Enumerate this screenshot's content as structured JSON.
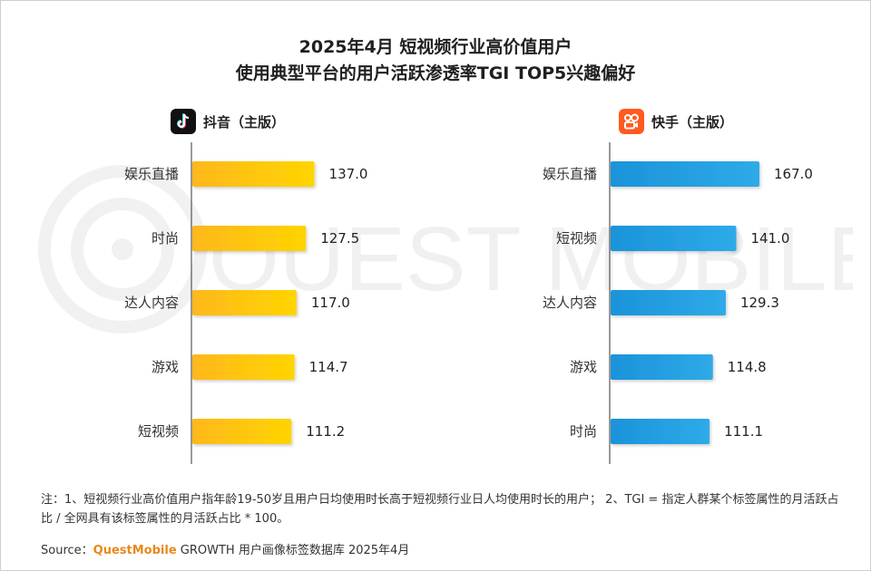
{
  "title_line1": "2025年4月 短视频行业高价值用户",
  "title_line2": "使用典型平台的用户活跃渗透率TGI TOP5兴趣偏好",
  "watermark_text": "QUEST MOBILE",
  "panels": [
    {
      "platform": "抖音（主版）",
      "logo_icon": "douyin-logo-icon"
    },
    {
      "platform": "快手（主版）",
      "logo_icon": "kuaishou-logo-icon"
    }
  ],
  "chart_data": [
    {
      "type": "bar",
      "orientation": "horizontal",
      "title": "抖音（主版）",
      "categories": [
        "娱乐直播",
        "时尚",
        "达人内容",
        "游戏",
        "短视频"
      ],
      "values": [
        137.0,
        127.5,
        117.0,
        114.7,
        111.2
      ],
      "value_labels": [
        "137.0",
        "127.5",
        "117.0",
        "114.7",
        "111.2"
      ],
      "color": "#ffc400",
      "xlim": [
        0,
        170
      ]
    },
    {
      "type": "bar",
      "orientation": "horizontal",
      "title": "快手（主版）",
      "categories": [
        "娱乐直播",
        "短视频",
        "达人内容",
        "游戏",
        "时尚"
      ],
      "values": [
        167.0,
        141.0,
        129.3,
        114.8,
        111.1
      ],
      "value_labels": [
        "167.0",
        "141.0",
        "129.3",
        "114.8",
        "111.1"
      ],
      "color": "#1e9fe0",
      "xlim": [
        0,
        170
      ]
    }
  ],
  "note": "注：1、短视频行业高价值用户指年龄19-50岁且用户日均使用时长高于短视频行业日人均使用时长的用户；  2、TGI = 指定人群某个标签属性的月活跃占比 / 全网具有该标签属性的月活跃占比 * 100。",
  "source": {
    "label": "Source：",
    "brand": "QuestMobile",
    "text": " GROWTH 用户画像标签数据库 2025年4月"
  },
  "colors": {
    "douyin_bar": "#ffc400",
    "kuaishou_bar": "#1e9fe0",
    "kuaishou_logo": "#ff5a1f",
    "douyin_logo": "#111111"
  }
}
